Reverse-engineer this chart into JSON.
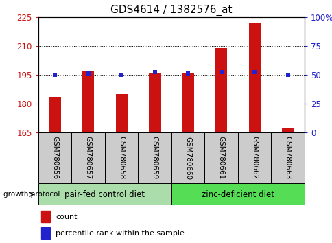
{
  "title": "GDS4614 / 1382576_at",
  "categories": [
    "GSM780656",
    "GSM780657",
    "GSM780658",
    "GSM780659",
    "GSM780660",
    "GSM780661",
    "GSM780662",
    "GSM780663"
  ],
  "count_values": [
    183,
    197,
    185,
    196,
    196,
    209,
    222,
    167
  ],
  "percentile_values": [
    50,
    51,
    50,
    52,
    51,
    52,
    52,
    50
  ],
  "ylim_left": [
    165,
    225
  ],
  "ylim_right": [
    0,
    100
  ],
  "yticks_left": [
    165,
    180,
    195,
    210,
    225
  ],
  "yticks_right": [
    0,
    25,
    50,
    75,
    100
  ],
  "ytick_labels_right": [
    "0",
    "25",
    "50",
    "75",
    "100%"
  ],
  "bar_color": "#cc1111",
  "dot_color": "#2222cc",
  "grid_yticks": [
    180,
    195,
    210
  ],
  "group1_label": "pair-fed control diet",
  "group2_label": "zinc-deficient diet",
  "group1_indices": [
    0,
    1,
    2,
    3
  ],
  "group2_indices": [
    4,
    5,
    6,
    7
  ],
  "group_color1": "#aaddaa",
  "group_color2": "#55dd55",
  "protocol_label": "growth protocol",
  "legend_count": "count",
  "legend_percentile": "percentile rank within the sample",
  "bar_width": 0.35,
  "title_fontsize": 11,
  "tick_fontsize": 8.5,
  "group_label_fontsize": 8.5,
  "label_fontsize": 7.5
}
